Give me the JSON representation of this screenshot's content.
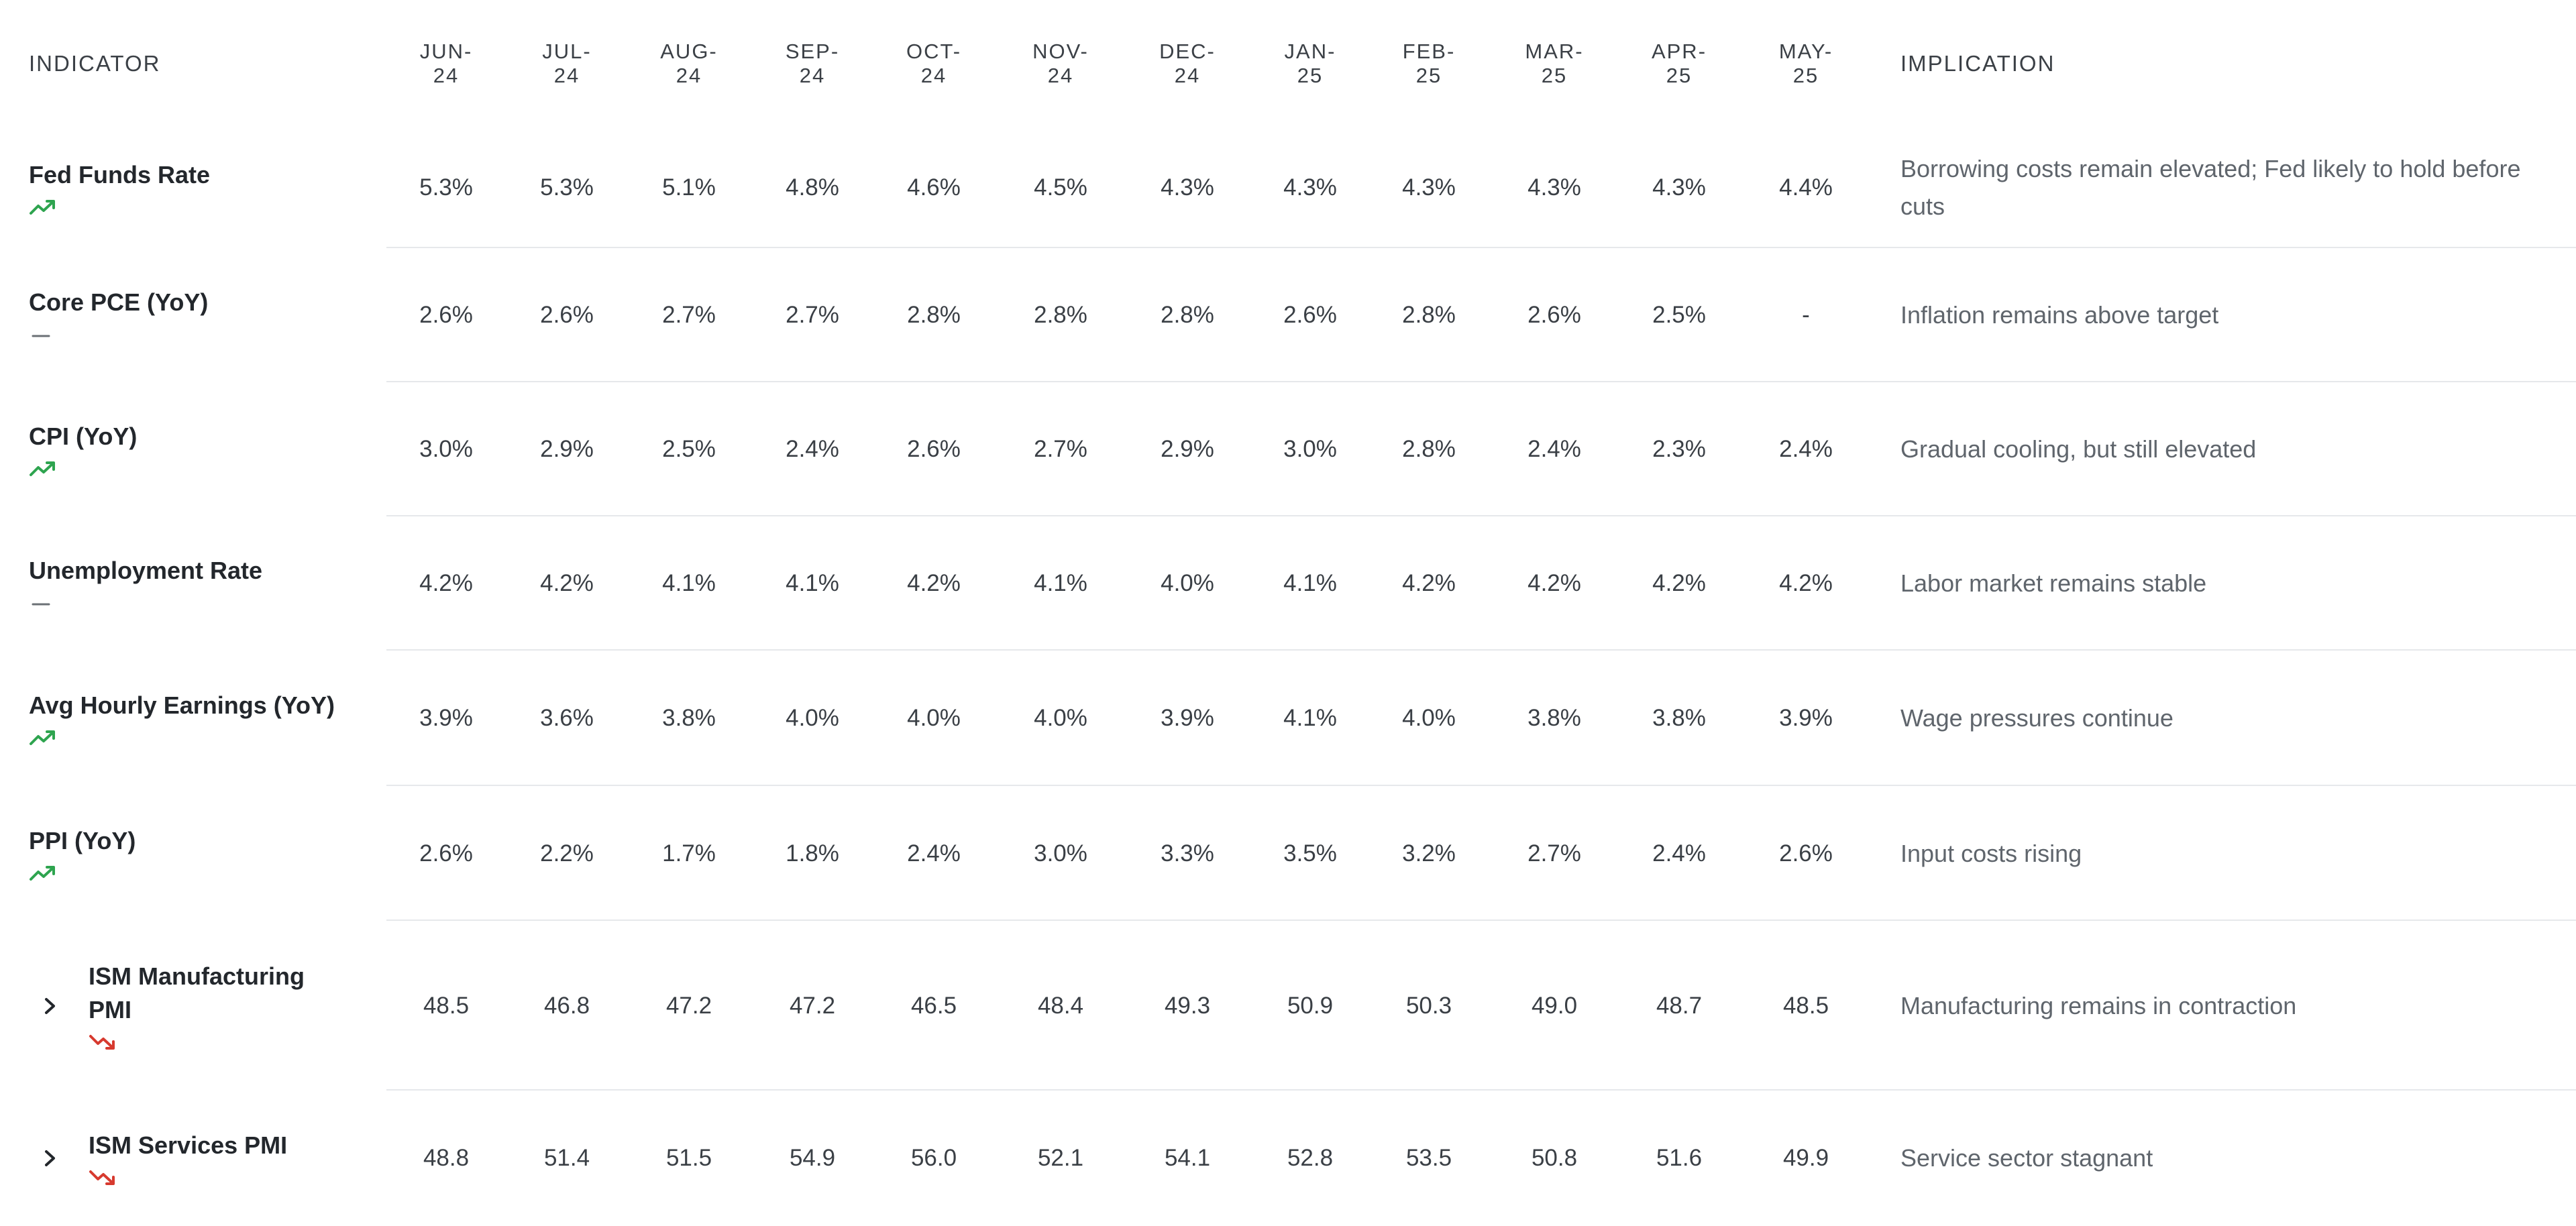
{
  "header": {
    "indicator": "INDICATOR",
    "months": [
      "JUN-\n24",
      "JUL-\n24",
      "AUG-\n24",
      "SEP-\n24",
      "OCT-\n24",
      "NOV-\n24",
      "DEC-\n24",
      "JAN-\n25",
      "FEB-\n25",
      "MAR-\n25",
      "APR-\n25",
      "MAY-\n25"
    ],
    "implication": "IMPLICATION"
  },
  "colors": {
    "trend_up": "#2ea44f",
    "trend_down": "#d73a2f",
    "flat": "#6b7075",
    "border": "#e6e8eb"
  },
  "rows": [
    {
      "name": "Fed Funds Rate",
      "trend": "trend-up-icon",
      "values": [
        "5.3%",
        "5.3%",
        "5.1%",
        "4.8%",
        "4.6%",
        "4.5%",
        "4.3%",
        "4.3%",
        "4.3%",
        "4.3%",
        "4.3%",
        "4.4%"
      ],
      "implication": "Borrowing costs remain elevated; Fed likely to hold before cuts"
    },
    {
      "name": "Core PCE (YoY)",
      "trend": "flat-dash-icon",
      "values": [
        "2.6%",
        "2.6%",
        "2.7%",
        "2.7%",
        "2.8%",
        "2.8%",
        "2.8%",
        "2.6%",
        "2.8%",
        "2.6%",
        "2.5%",
        "-"
      ],
      "implication": "Inflation remains above target"
    },
    {
      "name": "CPI (YoY)",
      "trend": "trend-up-icon",
      "values": [
        "3.0%",
        "2.9%",
        "2.5%",
        "2.4%",
        "2.6%",
        "2.7%",
        "2.9%",
        "3.0%",
        "2.8%",
        "2.4%",
        "2.3%",
        "2.4%"
      ],
      "implication": "Gradual cooling, but still elevated"
    },
    {
      "name": "Unemployment Rate",
      "trend": "flat-dash-icon",
      "values": [
        "4.2%",
        "4.2%",
        "4.1%",
        "4.1%",
        "4.2%",
        "4.1%",
        "4.0%",
        "4.1%",
        "4.2%",
        "4.2%",
        "4.2%",
        "4.2%"
      ],
      "implication": "Labor market remains stable"
    },
    {
      "name": "Avg Hourly Earnings (YoY)",
      "trend": "trend-up-icon",
      "values": [
        "3.9%",
        "3.6%",
        "3.8%",
        "4.0%",
        "4.0%",
        "4.0%",
        "3.9%",
        "4.1%",
        "4.0%",
        "3.8%",
        "3.8%",
        "3.9%"
      ],
      "implication": "Wage pressures continue"
    },
    {
      "name": "PPI (YoY)",
      "trend": "trend-up-icon",
      "values": [
        "2.6%",
        "2.2%",
        "1.7%",
        "1.8%",
        "2.4%",
        "3.0%",
        "3.3%",
        "3.5%",
        "3.2%",
        "2.7%",
        "2.4%",
        "2.6%"
      ],
      "implication": "Input costs rising"
    },
    {
      "name": "ISM Manufacturing PMI",
      "trend": "trend-down-icon",
      "expandable": true,
      "values": [
        "48.5",
        "46.8",
        "47.2",
        "47.2",
        "46.5",
        "48.4",
        "49.3",
        "50.9",
        "50.3",
        "49.0",
        "48.7",
        "48.5"
      ],
      "implication": "Manufacturing remains in contraction"
    },
    {
      "name": "ISM Services PMI",
      "trend": "trend-down-icon",
      "expandable": true,
      "values": [
        "48.8",
        "51.4",
        "51.5",
        "54.9",
        "56.0",
        "52.1",
        "54.1",
        "52.8",
        "53.5",
        "50.8",
        "51.6",
        "49.9"
      ],
      "implication": "Service sector stagnant"
    }
  ]
}
